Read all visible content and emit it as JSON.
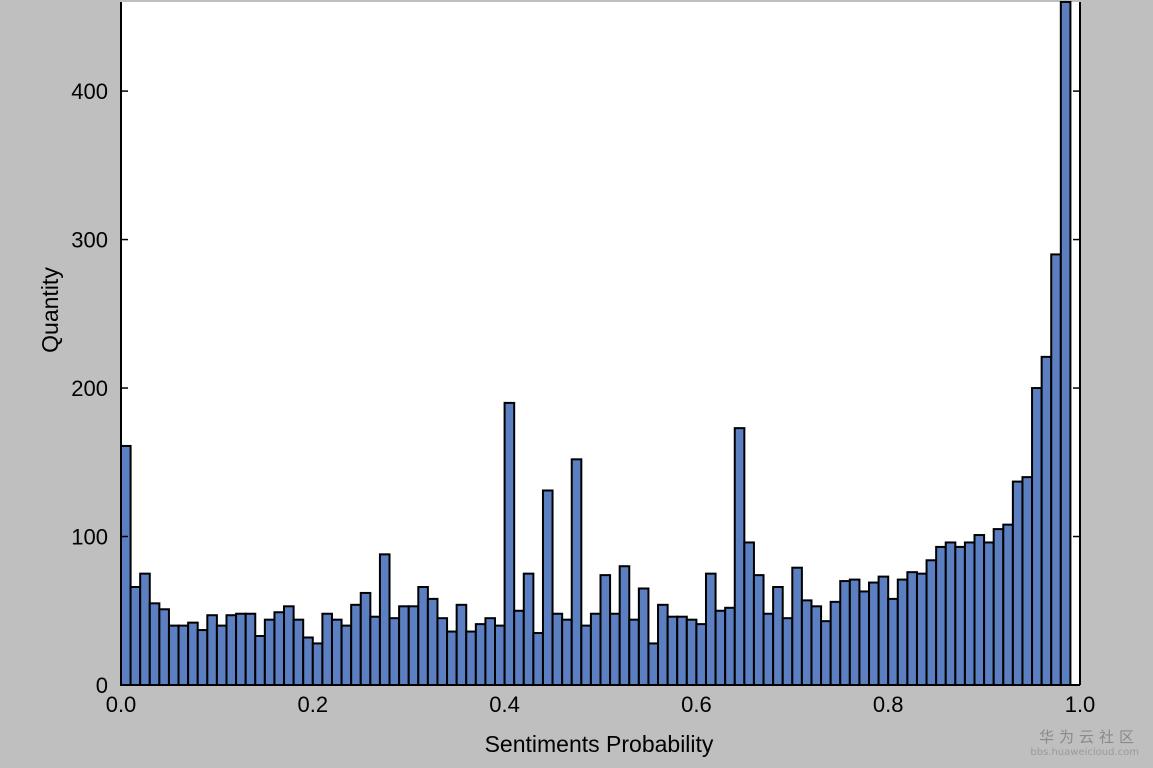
{
  "chart_data": {
    "type": "bar",
    "xlabel": "Sentiments Probability",
    "ylabel": "Quantity",
    "xlim": [
      0.0,
      1.0
    ],
    "ylim": [
      0,
      460
    ],
    "grid": false,
    "bin_width": 0.01,
    "x_ticks": [
      "0.0",
      "0.2",
      "0.4",
      "0.6",
      "0.8",
      "1.0"
    ],
    "y_ticks": [
      "0",
      "100",
      "200",
      "300",
      "400"
    ],
    "bins": [
      0.0,
      0.01,
      0.02,
      0.03,
      0.04,
      0.05,
      0.06,
      0.07,
      0.08,
      0.09,
      0.1,
      0.11,
      0.12,
      0.13,
      0.14,
      0.15,
      0.16,
      0.17,
      0.18,
      0.19,
      0.2,
      0.21,
      0.22,
      0.23,
      0.24,
      0.25,
      0.26,
      0.27,
      0.28,
      0.29,
      0.3,
      0.31,
      0.32,
      0.33,
      0.34,
      0.35,
      0.36,
      0.37,
      0.38,
      0.39,
      0.4,
      0.41,
      0.42,
      0.43,
      0.44,
      0.45,
      0.46,
      0.47,
      0.48,
      0.49,
      0.5,
      0.51,
      0.52,
      0.53,
      0.54,
      0.55,
      0.56,
      0.57,
      0.58,
      0.59,
      0.6,
      0.61,
      0.62,
      0.63,
      0.64,
      0.65,
      0.66,
      0.67,
      0.68,
      0.69,
      0.7,
      0.71,
      0.72,
      0.73,
      0.74,
      0.75,
      0.76,
      0.77,
      0.78,
      0.79,
      0.8,
      0.81,
      0.82,
      0.83,
      0.84,
      0.85,
      0.86,
      0.87,
      0.88,
      0.89,
      0.9,
      0.91,
      0.92,
      0.93,
      0.94,
      0.95,
      0.96,
      0.97,
      0.98,
      0.99
    ],
    "values": [
      161,
      66,
      75,
      55,
      51,
      40,
      40,
      42,
      37,
      47,
      40,
      47,
      48,
      48,
      33,
      44,
      49,
      53,
      44,
      32,
      28,
      48,
      44,
      40,
      54,
      62,
      46,
      88,
      45,
      53,
      53,
      66,
      58,
      45,
      36,
      54,
      36,
      41,
      45,
      40,
      190,
      50,
      75,
      35,
      131,
      48,
      44,
      152,
      40,
      48,
      74,
      48,
      80,
      44,
      65,
      28,
      54,
      46,
      46,
      44,
      41,
      75,
      50,
      52,
      173,
      96,
      74,
      48,
      66,
      45,
      79,
      57,
      53,
      43,
      56,
      70,
      71,
      63,
      69,
      73,
      58,
      71,
      76,
      75,
      84,
      93,
      96,
      93,
      96,
      101,
      96,
      105,
      108,
      137,
      140,
      200,
      221,
      290,
      460,
      0
    ],
    "colors": {
      "bar_fill": "#5b7fc0",
      "bar_edge": "#000000",
      "outer_background": "#bfbfbf",
      "plot_background": "#ffffff"
    }
  },
  "watermark": {
    "main": "华为云社区",
    "sub": "bbs.huaweicloud.com"
  }
}
